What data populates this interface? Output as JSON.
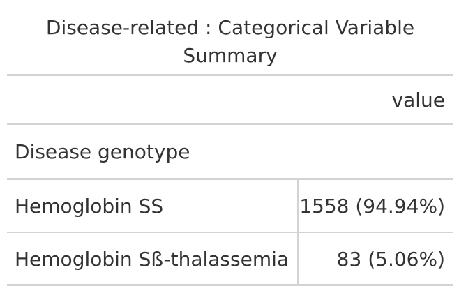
{
  "table": {
    "title": "Disease-related : Categorical Variable Summary",
    "column_header": "value",
    "group_label": "Disease genotype",
    "rows": [
      {
        "label": "Hemoglobin SS",
        "value": "1558 (94.94%)"
      },
      {
        "label": "Hemoglobin Sß-thalassemia",
        "value": "83 (5.06%)"
      }
    ]
  },
  "colors": {
    "text": "#333333",
    "rule": "#d3d3d3",
    "background": "#ffffff"
  }
}
